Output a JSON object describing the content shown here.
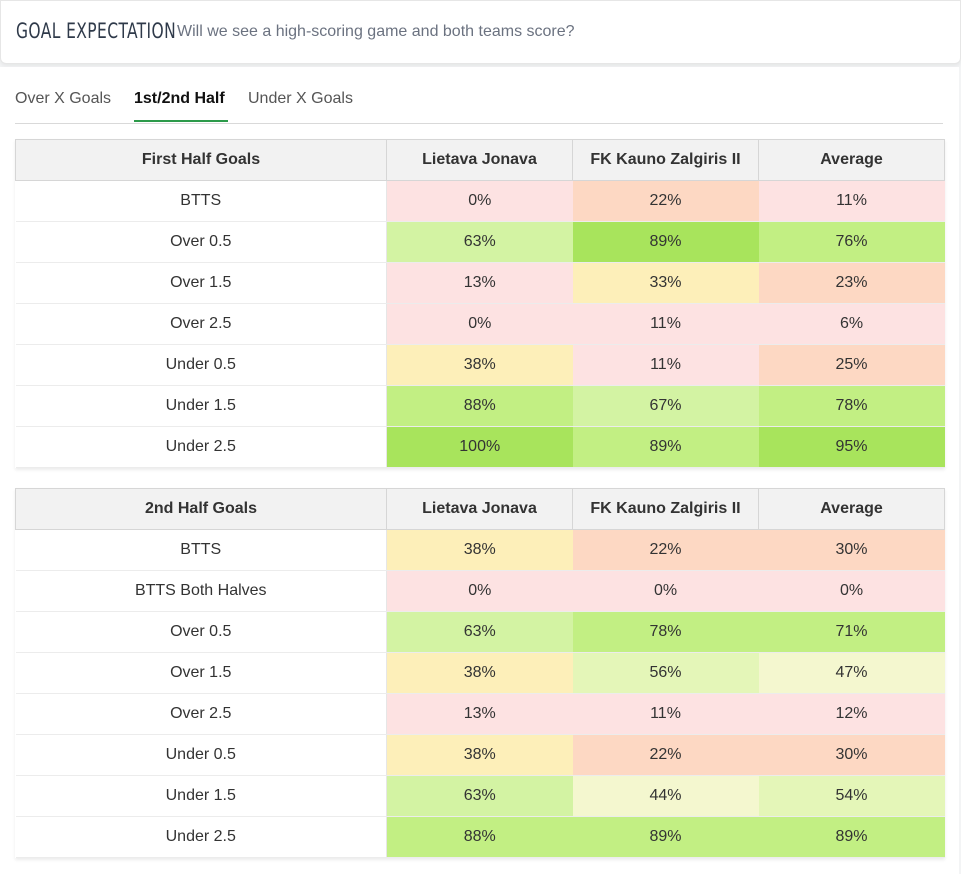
{
  "header": {
    "title": "GOAL EXPECTATION",
    "subtitle": "Will we see a high-scoring game and both teams score?"
  },
  "tabs": [
    {
      "label": "Over X Goals",
      "active": false
    },
    {
      "label": "1st/2nd Half",
      "active": true
    },
    {
      "label": "Under X Goals",
      "active": false
    }
  ],
  "colors": {
    "red_light": "#fde2e2",
    "orange_light": "#fdd8c3",
    "yellow_light": "#fdefb9",
    "cream": "#f4f7cf",
    "green_pale": "#e4f6b8",
    "green_light": "#d3f3a3",
    "green_mid": "#c2ef83",
    "green_strong": "#a8e45c",
    "accent": "#2c9a4a"
  },
  "tables": [
    {
      "headers": [
        "First Half Goals",
        "Lietava Jonava",
        "FK Kauno Zalgiris II",
        "Average"
      ],
      "rows": [
        {
          "label": "BTTS",
          "values": [
            "0%",
            "22%",
            "11%"
          ],
          "colors": [
            "red_light",
            "orange_light",
            "red_light"
          ]
        },
        {
          "label": "Over 0.5",
          "values": [
            "63%",
            "89%",
            "76%"
          ],
          "colors": [
            "green_light",
            "green_strong",
            "green_mid"
          ]
        },
        {
          "label": "Over 1.5",
          "values": [
            "13%",
            "33%",
            "23%"
          ],
          "colors": [
            "red_light",
            "yellow_light",
            "orange_light"
          ]
        },
        {
          "label": "Over 2.5",
          "values": [
            "0%",
            "11%",
            "6%"
          ],
          "colors": [
            "red_light",
            "red_light",
            "red_light"
          ]
        },
        {
          "label": "Under 0.5",
          "values": [
            "38%",
            "11%",
            "25%"
          ],
          "colors": [
            "yellow_light",
            "red_light",
            "orange_light"
          ]
        },
        {
          "label": "Under 1.5",
          "values": [
            "88%",
            "67%",
            "78%"
          ],
          "colors": [
            "green_mid",
            "green_light",
            "green_mid"
          ]
        },
        {
          "label": "Under 2.5",
          "values": [
            "100%",
            "89%",
            "95%"
          ],
          "colors": [
            "green_strong",
            "green_mid",
            "green_strong"
          ]
        }
      ]
    },
    {
      "headers": [
        "2nd Half Goals",
        "Lietava Jonava",
        "FK Kauno Zalgiris II",
        "Average"
      ],
      "rows": [
        {
          "label": "BTTS",
          "values": [
            "38%",
            "22%",
            "30%"
          ],
          "colors": [
            "yellow_light",
            "orange_light",
            "orange_light"
          ]
        },
        {
          "label": "BTTS Both Halves",
          "values": [
            "0%",
            "0%",
            "0%"
          ],
          "colors": [
            "red_light",
            "red_light",
            "red_light"
          ]
        },
        {
          "label": "Over 0.5",
          "values": [
            "63%",
            "78%",
            "71%"
          ],
          "colors": [
            "green_light",
            "green_mid",
            "green_mid"
          ]
        },
        {
          "label": "Over 1.5",
          "values": [
            "38%",
            "56%",
            "47%"
          ],
          "colors": [
            "yellow_light",
            "green_pale",
            "cream"
          ]
        },
        {
          "label": "Over 2.5",
          "values": [
            "13%",
            "11%",
            "12%"
          ],
          "colors": [
            "red_light",
            "red_light",
            "red_light"
          ]
        },
        {
          "label": "Under 0.5",
          "values": [
            "38%",
            "22%",
            "30%"
          ],
          "colors": [
            "yellow_light",
            "orange_light",
            "orange_light"
          ]
        },
        {
          "label": "Under 1.5",
          "values": [
            "63%",
            "44%",
            "54%"
          ],
          "colors": [
            "green_light",
            "cream",
            "green_pale"
          ]
        },
        {
          "label": "Under 2.5",
          "values": [
            "88%",
            "89%",
            "89%"
          ],
          "colors": [
            "green_mid",
            "green_mid",
            "green_mid"
          ]
        }
      ]
    }
  ]
}
